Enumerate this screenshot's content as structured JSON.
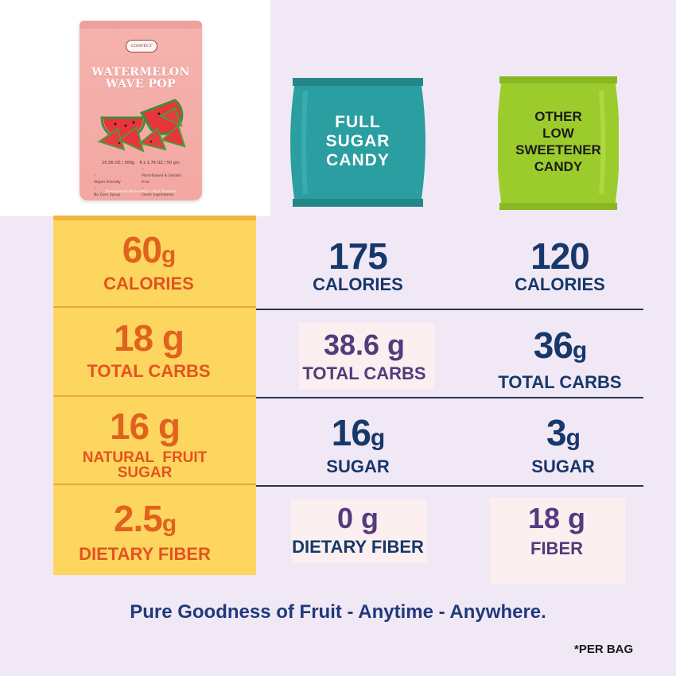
{
  "product": {
    "brand": "CONFECT",
    "name_line1": "WATERMELON",
    "name_line2": "WAVE POP",
    "net_weight": "10.56 OZ / 300g",
    "pack_size": "6 x 1.76 OZ / 50 gm",
    "claims": [
      "Vegan Friendly",
      "Plant-Based & Gelatin Free",
      "No Corn Syrup",
      "Clean Ingredients"
    ],
    "tagline": "Sweetened Naturally • Not Nasties"
  },
  "full_sugar_bag": {
    "line1": "FULL",
    "line2": "SUGAR",
    "line3": "CANDY",
    "color": "#2a9ea1"
  },
  "low_sweetener_bag": {
    "line1": "OTHER",
    "line2": "LOW",
    "line3": "SWEETENER",
    "line4": "CANDY",
    "color": "#9ccc2c"
  },
  "rows": [
    {
      "product": {
        "value": "60",
        "unit": "g",
        "label": "CALORIES"
      },
      "full_sugar": {
        "value": "175",
        "unit": "",
        "label": "CALORIES"
      },
      "low_sweetener": {
        "value": "120",
        "unit": "",
        "label": "CALORIES"
      }
    },
    {
      "product": {
        "value": "18",
        "unit": " g",
        "label": "TOTAL CARBS"
      },
      "full_sugar": {
        "value": "38.6",
        "unit": " g",
        "label": "TOTAL CARBS"
      },
      "low_sweetener": {
        "value": "36",
        "unit": "g",
        "label": "TOTAL CARBS"
      }
    },
    {
      "product": {
        "value": "16",
        "unit": " g",
        "label_line1": "NATURAL  FRUIT",
        "label_line2": "SUGAR"
      },
      "full_sugar": {
        "value": "16",
        "unit": "g",
        "label": "SUGAR"
      },
      "low_sweetener": {
        "value": "3",
        "unit": "g",
        "label": "SUGAR"
      }
    },
    {
      "product": {
        "value": "2.5",
        "unit": "g",
        "label": "DIETARY FIBER"
      },
      "full_sugar": {
        "value": "0",
        "unit": " g",
        "label": "DIETARY FIBER"
      },
      "low_sweetener": {
        "value": "18",
        "unit": " g",
        "label": "FIBER"
      }
    }
  ],
  "tagline": "Pure Goodness of Fruit - Anytime - Anywhere.",
  "footnote": "*PER BAG",
  "colors": {
    "highlight": "#fdd65f",
    "orange": "#e1621e",
    "navy": "#17386a",
    "purple": "#553a7d",
    "background": "#f1e8f5"
  }
}
